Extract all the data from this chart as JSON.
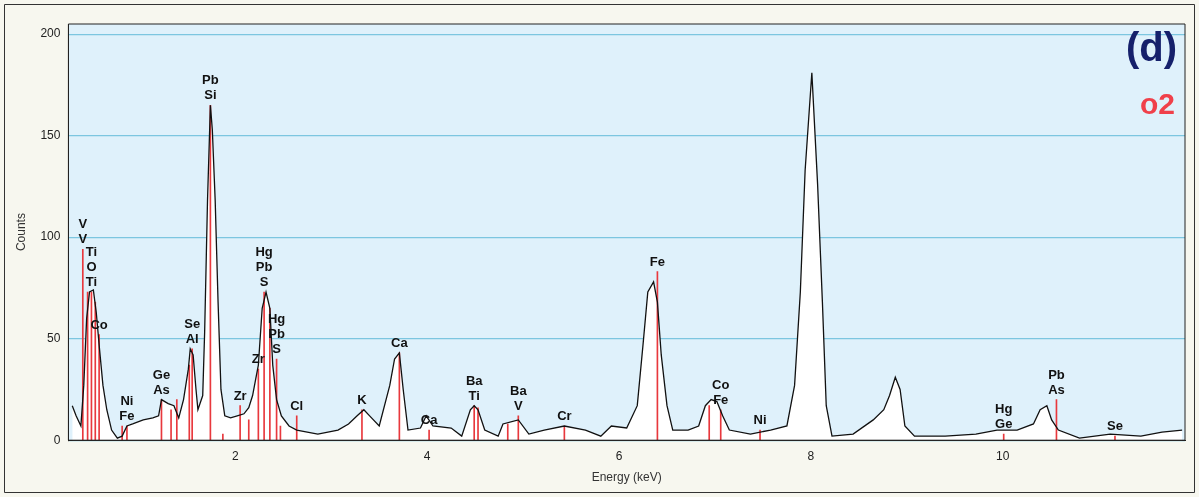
{
  "chart_data": {
    "type": "area",
    "xlabel": "Energy (keV)",
    "ylabel": "Counts",
    "xlim": [
      0.26,
      11.9
    ],
    "xticks": [
      2,
      4,
      6,
      8,
      10
    ],
    "ylim": [
      0,
      205
    ],
    "yticks": [
      0,
      50,
      100,
      150,
      200
    ],
    "grid": "y",
    "legend": false,
    "series": [
      {
        "color": "#ffffff",
        "x": [
          0.3,
          0.34,
          0.39,
          0.42,
          0.45,
          0.48,
          0.52,
          0.55,
          0.58,
          0.62,
          0.66,
          0.71,
          0.77,
          0.82,
          0.87,
          0.93,
          1.04,
          1.14,
          1.2,
          1.23,
          1.3,
          1.36,
          1.41,
          1.46,
          1.51,
          1.53,
          1.56,
          1.59,
          1.61,
          1.66,
          1.68,
          1.71,
          1.74,
          1.76,
          1.79,
          1.82,
          1.85,
          1.89,
          1.95,
          2.02,
          2.09,
          2.14,
          2.18,
          2.24,
          2.28,
          2.32,
          2.36,
          2.39,
          2.43,
          2.48,
          2.56,
          2.64,
          2.86,
          3.07,
          3.18,
          3.27,
          3.34,
          3.4,
          3.5,
          3.61,
          3.66,
          3.71,
          3.75,
          3.8,
          3.93,
          3.99,
          4.06,
          4.25,
          4.36,
          4.45,
          4.49,
          4.53,
          4.6,
          4.74,
          4.79,
          4.95,
          5.06,
          5.22,
          5.43,
          5.65,
          5.81,
          5.92,
          6.08,
          6.19,
          6.25,
          6.3,
          6.36,
          6.4,
          6.44,
          6.5,
          6.56,
          6.72,
          6.83,
          6.9,
          6.96,
          7.02,
          7.08,
          7.15,
          7.37,
          7.58,
          7.75,
          7.83,
          7.89,
          7.94,
          8.01,
          8.07,
          8.12,
          8.16,
          8.22,
          8.44,
          8.65,
          8.76,
          8.82,
          8.88,
          8.93,
          8.98,
          9.08,
          9.4,
          9.72,
          9.94,
          10.15,
          10.32,
          10.39,
          10.46,
          10.51,
          10.58,
          10.8,
          11.12,
          11.44,
          11.66,
          11.87
        ],
        "values": [
          17,
          12,
          7,
          27,
          60,
          73,
          74,
          63,
          47,
          27,
          15,
          5,
          1,
          2,
          7,
          8,
          10,
          11,
          12,
          20,
          18,
          17,
          11,
          20,
          35,
          45,
          42,
          25,
          15,
          22,
          53,
          118,
          165,
          153,
          118,
          68,
          25,
          12,
          11,
          12,
          13,
          16,
          22,
          37,
          65,
          73,
          65,
          37,
          20,
          12,
          7,
          5,
          3,
          5,
          8,
          12,
          15,
          12,
          7,
          27,
          40,
          43,
          25,
          5,
          6,
          12,
          7,
          6,
          2,
          15,
          17,
          15,
          5,
          2,
          8,
          10,
          3,
          5,
          7,
          5,
          2,
          7,
          6,
          17,
          47,
          73,
          78,
          68,
          42,
          17,
          5,
          5,
          7,
          17,
          20,
          19,
          12,
          5,
          3,
          5,
          7,
          27,
          73,
          133,
          181,
          126,
          68,
          17,
          2,
          3,
          10,
          15,
          22,
          31,
          25,
          7,
          2,
          2,
          3,
          5,
          5,
          8,
          15,
          17,
          10,
          5,
          1,
          3,
          2,
          4,
          5
        ]
      },
      {
        "type": "bar",
        "color": "#e8383d",
        "x": [
          0.41,
          0.46,
          0.5,
          0.54,
          0.58,
          0.82,
          0.87,
          1.23,
          1.33,
          1.39,
          1.52,
          1.55,
          1.74,
          1.87,
          2.05,
          2.14,
          2.24,
          2.3,
          2.36,
          2.43,
          2.47,
          2.64,
          3.32,
          3.71,
          4.02,
          4.49,
          4.53,
          4.84,
          4.95,
          5.43,
          6.4,
          6.94,
          7.06,
          7.47,
          10.01,
          10.56,
          11.17
        ],
        "values": [
          94,
          73,
          73,
          68,
          52,
          7,
          7,
          20,
          15,
          20,
          37,
          45,
          165,
          3,
          17,
          10,
          35,
          73,
          65,
          40,
          7,
          12,
          15,
          43,
          5,
          17,
          16,
          8,
          12,
          7,
          83,
          17,
          15,
          5,
          3,
          20,
          2
        ]
      }
    ],
    "annotations": [
      "(d)",
      "o2",
      {
        "text": "Ti",
        "x": 0.5,
        "y": 73
      },
      {
        "text": "O",
        "x": 0.5,
        "y": 73
      },
      {
        "text": "Ti",
        "x": 0.5,
        "y": 73
      },
      {
        "text": "V",
        "x": 0.41,
        "y": 94
      },
      {
        "text": "V",
        "x": 0.41,
        "y": 94
      },
      {
        "text": "Co",
        "x": 0.58,
        "y": 52
      },
      {
        "text": "Fe",
        "x": 0.87,
        "y": 7
      },
      {
        "text": "Ni",
        "x": 0.87,
        "y": 7
      },
      {
        "text": "As",
        "x": 1.23,
        "y": 20
      },
      {
        "text": "Ge",
        "x": 1.23,
        "y": 20
      },
      {
        "text": "Al",
        "x": 1.55,
        "y": 45
      },
      {
        "text": "Se",
        "x": 1.55,
        "y": 45
      },
      {
        "text": "Si",
        "x": 1.74,
        "y": 165
      },
      {
        "text": "Pb",
        "x": 1.74,
        "y": 165
      },
      {
        "text": "Zr",
        "x": 2.05,
        "y": 17
      },
      {
        "text": "Zr",
        "x": 2.24,
        "y": 35
      },
      {
        "text": "S",
        "x": 2.3,
        "y": 73
      },
      {
        "text": "Pb",
        "x": 2.3,
        "y": 73
      },
      {
        "text": "Hg",
        "x": 2.3,
        "y": 73
      },
      {
        "text": "S",
        "x": 2.43,
        "y": 40
      },
      {
        "text": "Pb",
        "x": 2.43,
        "y": 40
      },
      {
        "text": "Hg",
        "x": 2.43,
        "y": 40
      },
      {
        "text": "Cl",
        "x": 2.64,
        "y": 12
      },
      {
        "text": "K",
        "x": 3.32,
        "y": 15
      },
      {
        "text": "Ca",
        "x": 3.71,
        "y": 43
      },
      {
        "text": "Ca",
        "x": 4.02,
        "y": 5
      },
      {
        "text": "Ti",
        "x": 4.49,
        "y": 17
      },
      {
        "text": "Ba",
        "x": 4.49,
        "y": 17
      },
      {
        "text": "V",
        "x": 4.95,
        "y": 12
      },
      {
        "text": "Ba",
        "x": 4.95,
        "y": 12
      },
      {
        "text": "Cr",
        "x": 5.43,
        "y": 7
      },
      {
        "text": "Fe",
        "x": 6.4,
        "y": 83
      },
      {
        "text": "Fe",
        "x": 7.06,
        "y": 15
      },
      {
        "text": "Co",
        "x": 7.06,
        "y": 15
      },
      {
        "text": "Ni",
        "x": 7.47,
        "y": 5
      },
      {
        "text": "Ge",
        "x": 10.01,
        "y": 3
      },
      {
        "text": "Hg",
        "x": 10.01,
        "y": 3
      },
      {
        "text": "As",
        "x": 10.56,
        "y": 20
      },
      {
        "text": "Pb",
        "x": 10.56,
        "y": 20
      },
      {
        "text": "Se",
        "x": 11.17,
        "y": 2
      }
    ]
  }
}
